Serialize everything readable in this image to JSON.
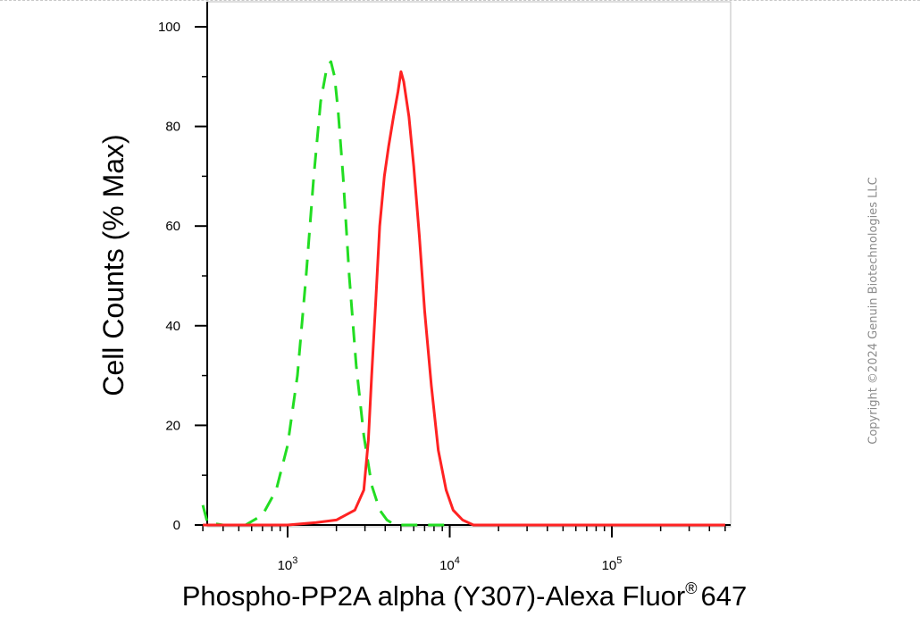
{
  "chart_data": {
    "type": "line",
    "title": "",
    "xlabel": {
      "main": "Phospho-PP2A alpha (Y307)-Alexa Fluor",
      "superscript": "®",
      "suffix": "647"
    },
    "ylabel": "Cell Counts (% Max)",
    "x_scale": "log",
    "xlim": [
      300,
      500000
    ],
    "ylim": [
      0,
      105
    ],
    "y_ticks": [
      0,
      20,
      40,
      60,
      80,
      100
    ],
    "x_ticks": [
      {
        "value": 1000,
        "base": "10",
        "exp": "3"
      },
      {
        "value": 10000,
        "base": "10",
        "exp": "4"
      },
      {
        "value": 100000,
        "base": "10",
        "exp": "5"
      }
    ],
    "series": [
      {
        "color": "#22dd22",
        "style": "dashed",
        "points": [
          [
            300,
            4
          ],
          [
            320,
            0.5
          ],
          [
            400,
            0
          ],
          [
            550,
            0
          ],
          [
            700,
            2
          ],
          [
            850,
            7
          ],
          [
            1000,
            16
          ],
          [
            1150,
            30
          ],
          [
            1300,
            50
          ],
          [
            1450,
            70
          ],
          [
            1600,
            85
          ],
          [
            1750,
            92
          ],
          [
            1850,
            93
          ],
          [
            1950,
            90
          ],
          [
            2050,
            83
          ],
          [
            2200,
            70
          ],
          [
            2400,
            50
          ],
          [
            2650,
            32
          ],
          [
            2950,
            18
          ],
          [
            3300,
            8
          ],
          [
            3700,
            3
          ],
          [
            4100,
            1
          ],
          [
            4600,
            0
          ],
          [
            6000,
            0
          ],
          [
            10000,
            0
          ]
        ]
      },
      {
        "color": "#ff2222",
        "style": "solid",
        "points": [
          [
            300,
            0
          ],
          [
            1000,
            0
          ],
          [
            1500,
            0.5
          ],
          [
            2000,
            1
          ],
          [
            2600,
            3
          ],
          [
            2950,
            7
          ],
          [
            3150,
            17
          ],
          [
            3300,
            30
          ],
          [
            3500,
            45
          ],
          [
            3700,
            60
          ],
          [
            3950,
            70
          ],
          [
            4200,
            76
          ],
          [
            4500,
            82
          ],
          [
            4800,
            87
          ],
          [
            5000,
            91
          ],
          [
            5200,
            89
          ],
          [
            5600,
            82
          ],
          [
            6000,
            72
          ],
          [
            6500,
            58
          ],
          [
            7000,
            43
          ],
          [
            7700,
            28
          ],
          [
            8500,
            15
          ],
          [
            9500,
            7
          ],
          [
            10500,
            3
          ],
          [
            12000,
            1
          ],
          [
            14000,
            0
          ],
          [
            20000,
            0
          ],
          [
            100000,
            0
          ],
          [
            500000,
            0
          ]
        ]
      }
    ]
  },
  "watermark": "Copyright ©2024 Genuin Biotechnologies LLC"
}
